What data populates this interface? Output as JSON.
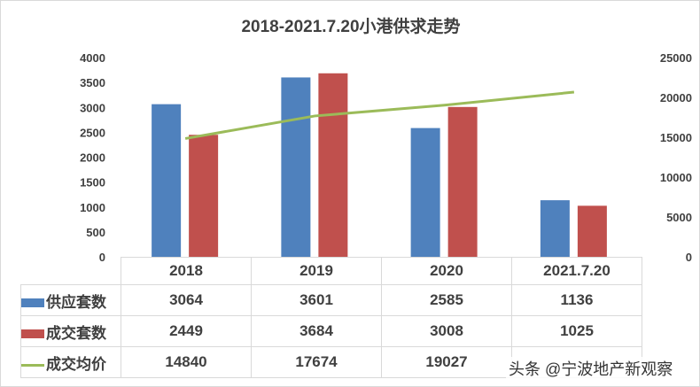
{
  "chart_data": {
    "type": "bar",
    "title": "2018-2021.7.20小港供求走势",
    "categories": [
      "2018",
      "2019",
      "2020",
      "2021.7.20"
    ],
    "series": [
      {
        "name": "供应套数",
        "type": "bar",
        "axis": "left",
        "color": "#4f81bd",
        "values": [
          3064,
          3601,
          2585,
          1136
        ],
        "labels": [
          "3064",
          "3601",
          "2585",
          "1136"
        ]
      },
      {
        "name": "成交套数",
        "type": "bar",
        "axis": "left",
        "color": "#c0504d",
        "values": [
          2449,
          3684,
          3008,
          1025
        ],
        "labels": [
          "2449",
          "3684",
          "3008",
          "1025"
        ]
      },
      {
        "name": "成交均价",
        "type": "line",
        "axis": "right",
        "color": "#9bbb59",
        "values": [
          14840,
          17674,
          19027,
          20667
        ],
        "labels": [
          "14840",
          "17674",
          "19027",
          ""
        ]
      }
    ],
    "ylim_left": [
      0,
      4000
    ],
    "ylim_right": [
      0,
      25000
    ],
    "left_ticks": [
      "0",
      "500",
      "1000",
      "1500",
      "2000",
      "2500",
      "3000",
      "3500",
      "4000"
    ],
    "right_ticks": [
      "0",
      "5000",
      "10000",
      "15000",
      "20000",
      "25000"
    ],
    "legend": "data-table"
  },
  "watermark": "头条 @宁波地产新观察"
}
